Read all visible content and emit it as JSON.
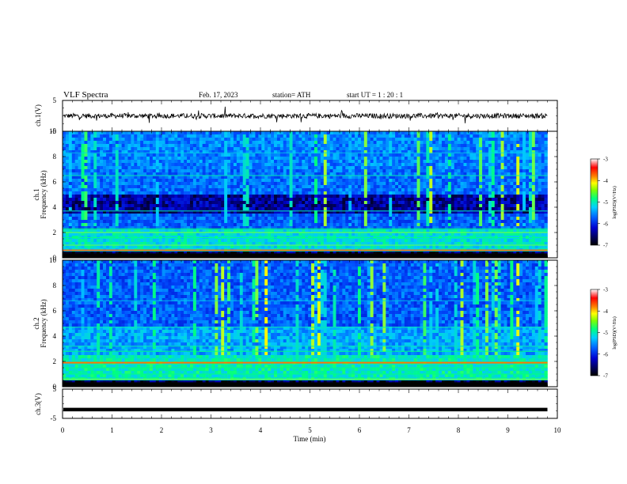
{
  "header": {
    "title": "VLF  Spectra",
    "date": "Feb. 17, 2023",
    "station": "station= ATH",
    "start": "start  UT  =   1  : 20 : 1"
  },
  "chart_data": [
    {
      "type": "line",
      "name": "ch1-waveform",
      "ylabel": "ch.1(V)",
      "ylim": [
        -5,
        5
      ],
      "yticks": [
        "5",
        "-5"
      ],
      "xlim": [
        0,
        10
      ],
      "baseline": 0
    },
    {
      "type": "heatmap",
      "name": "ch1-spectrogram",
      "ylabel": "ch.1\nFrequency (kHz)",
      "ylabel_lines": [
        "ch.1",
        "Frequency (kHz)"
      ],
      "ylim": [
        0,
        10
      ],
      "yticks": [
        "0",
        "2",
        "4",
        "6",
        "8",
        "10"
      ],
      "xlim": [
        0,
        9.8
      ],
      "colorbar": {
        "label": "log(PSD)(V²/Hz)",
        "range": [
          -7,
          -3
        ],
        "ticks": [
          "-3",
          "-4",
          "-5",
          "-6",
          "-7"
        ]
      }
    },
    {
      "type": "heatmap",
      "name": "ch2-spectrogram",
      "ylabel": "ch.2\nFrequency (kHz)",
      "ylabel_lines": [
        "ch.2",
        "Frequency (kHz)"
      ],
      "ylim": [
        0,
        10
      ],
      "yticks": [
        "0",
        "2",
        "4",
        "6",
        "8",
        "10"
      ],
      "xlim": [
        0,
        9.8
      ],
      "colorbar": {
        "label": "log(PSD)(V²/Hz)",
        "range": [
          -7,
          -3
        ],
        "ticks": [
          "-3",
          "-4",
          "-5",
          "-6",
          "-7"
        ]
      }
    },
    {
      "type": "line",
      "name": "ch3-waveform",
      "ylabel": "ch.3(V)",
      "ylim": [
        -5,
        5
      ],
      "yticks": [
        "5",
        "-5"
      ],
      "xlim": [
        0,
        10
      ],
      "xlabel": "Time  (min)",
      "xticks": [
        "0",
        "1",
        "2",
        "3",
        "4",
        "5",
        "6",
        "7",
        "8",
        "9",
        "10"
      ],
      "baseline": -2
    }
  ],
  "colors": {
    "background": "#ffffff",
    "axes": "#000000",
    "trace": "#000000",
    "colormap": [
      "#000000",
      "#0000c8",
      "#0050ff",
      "#00c8ff",
      "#00ff80",
      "#ffff00",
      "#ff8000",
      "#ff0000",
      "#ffffff"
    ]
  }
}
